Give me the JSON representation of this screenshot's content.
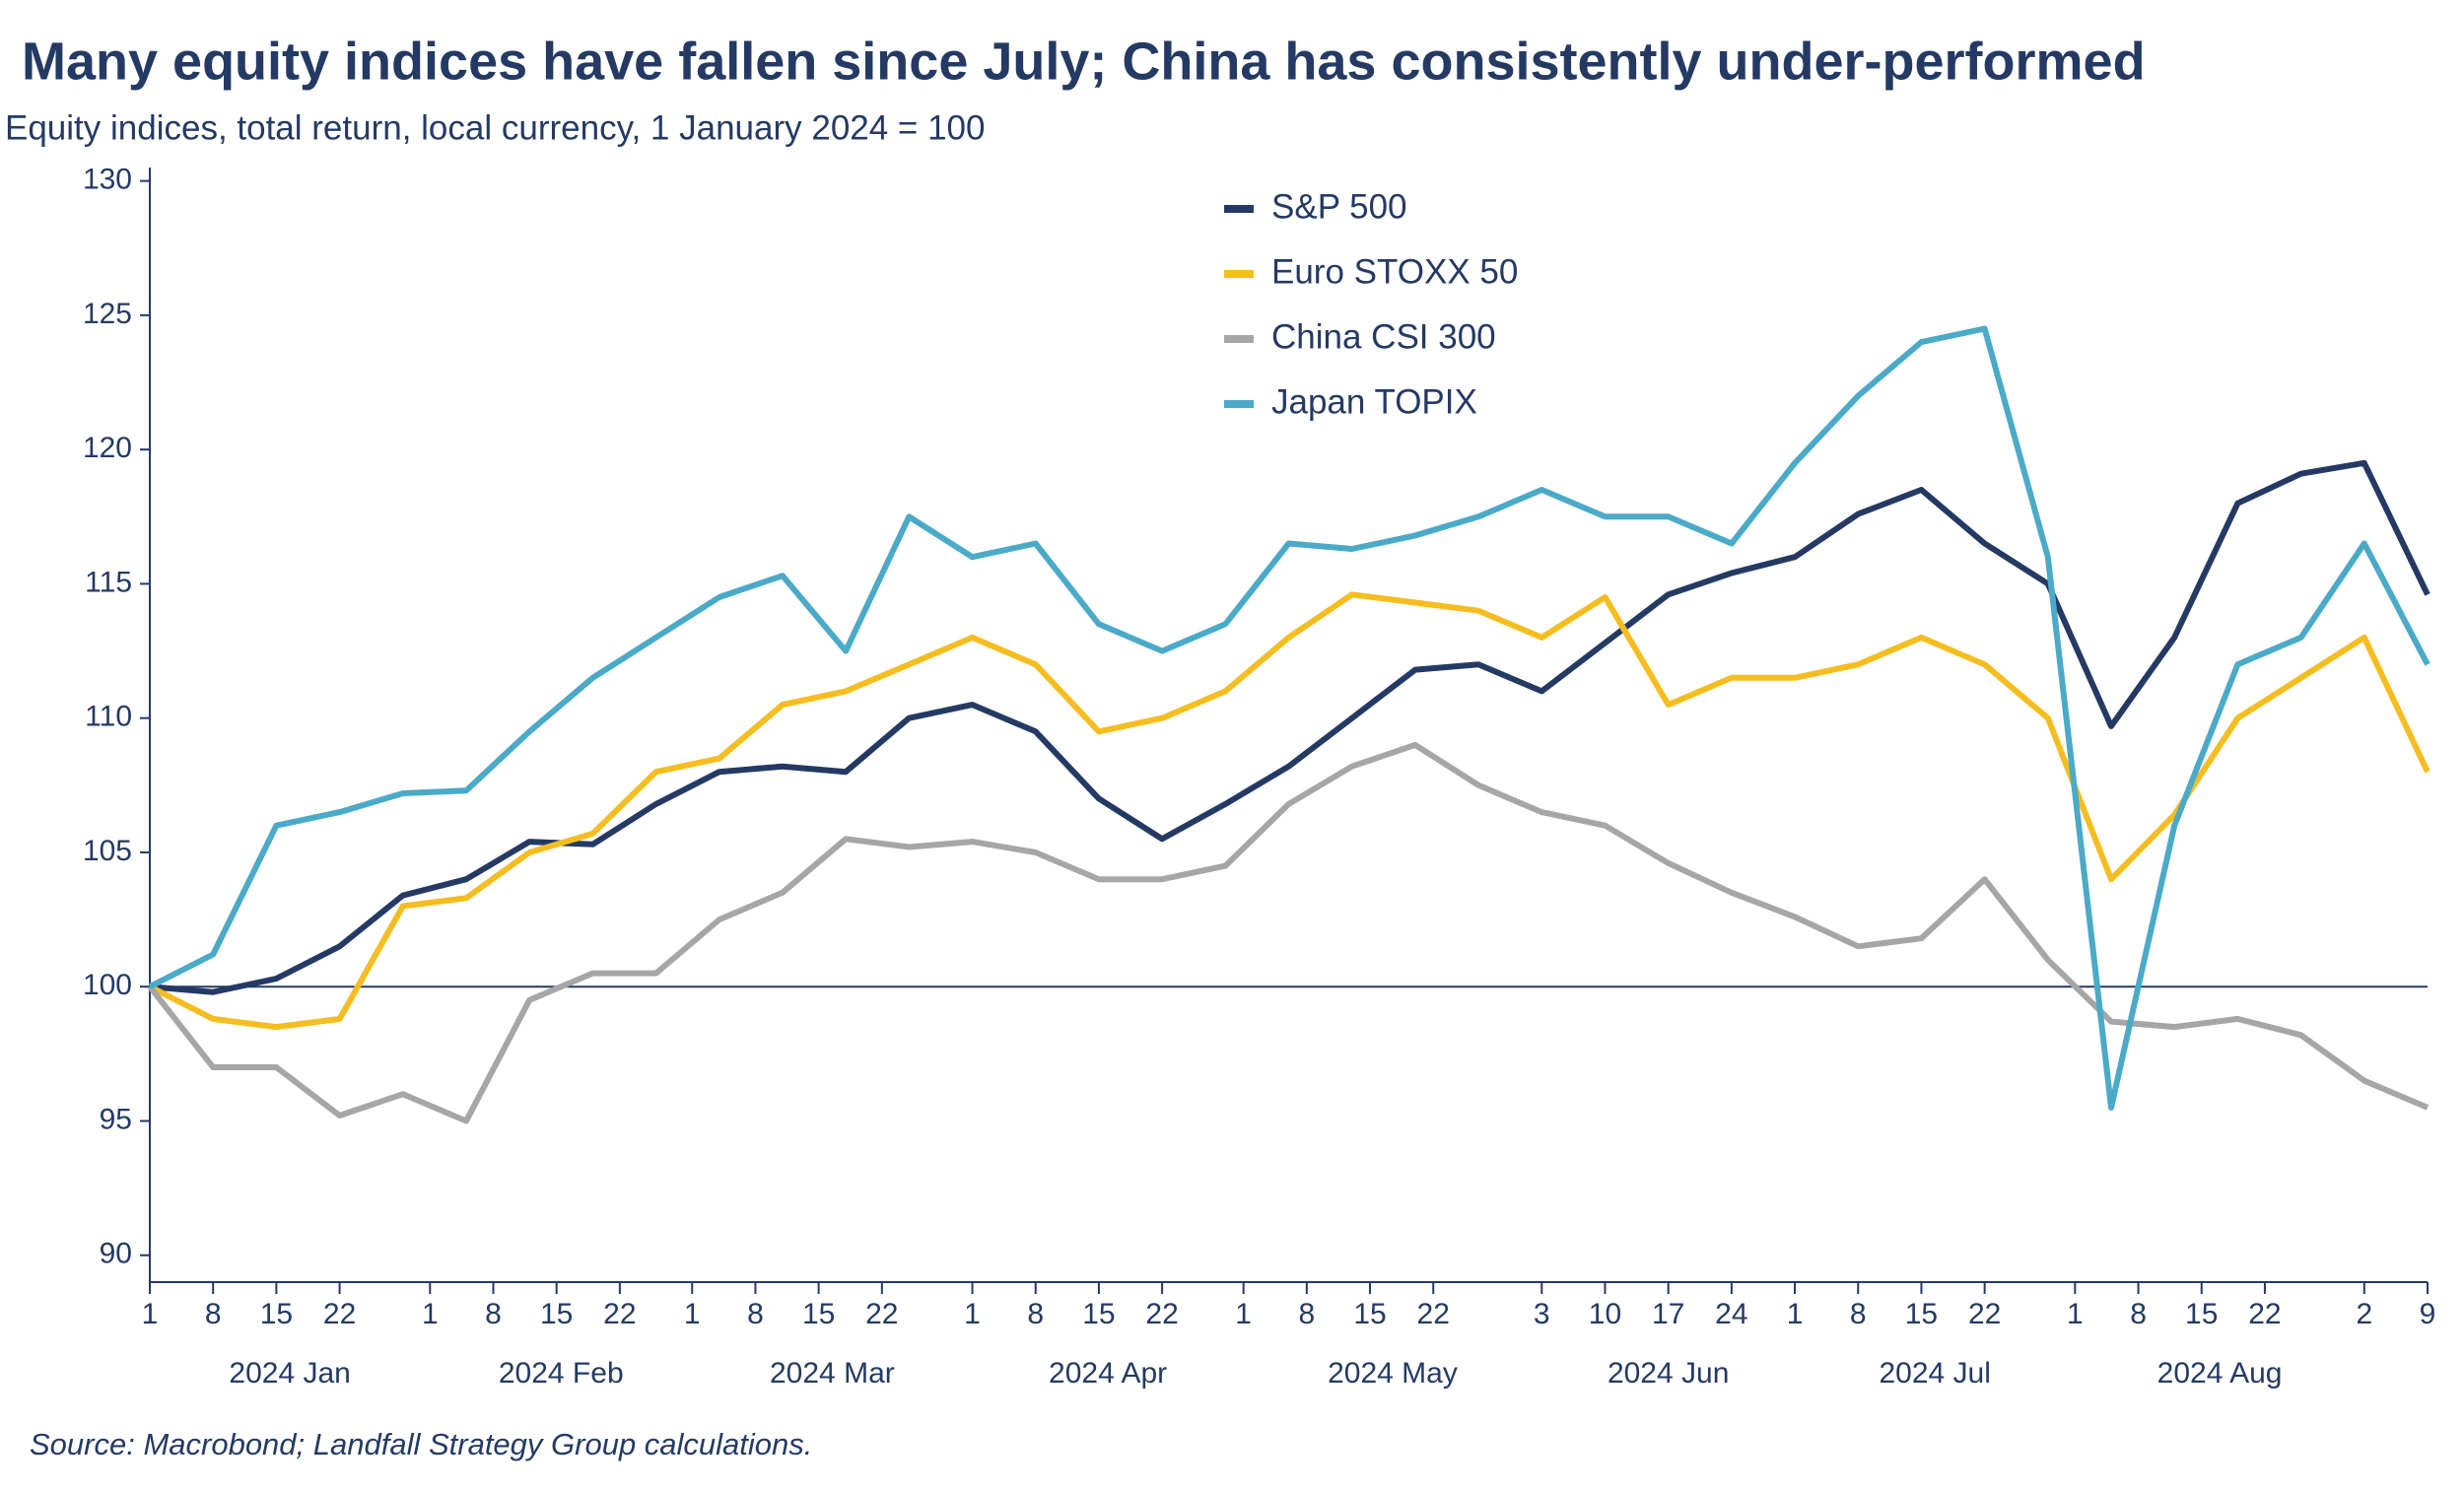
{
  "chart_data": {
    "type": "line",
    "title": "Many equity indices have fallen since July; China has consistently under-performed",
    "subtitle": "Equity indices, total return, local currency, 1 January 2024 = 100",
    "source": "Source: Macrobond; Landfall Strategy Group calculations.",
    "x": [
      "2024-01-01",
      "2024-01-08",
      "2024-01-15",
      "2024-01-22",
      "2024-01-29",
      "2024-02-05",
      "2024-02-12",
      "2024-02-19",
      "2024-02-26",
      "2024-03-04",
      "2024-03-11",
      "2024-03-18",
      "2024-03-25",
      "2024-04-01",
      "2024-04-08",
      "2024-04-15",
      "2024-04-22",
      "2024-04-29",
      "2024-05-06",
      "2024-05-13",
      "2024-05-20",
      "2024-05-27",
      "2024-06-03",
      "2024-06-10",
      "2024-06-17",
      "2024-06-24",
      "2024-07-01",
      "2024-07-08",
      "2024-07-15",
      "2024-07-22",
      "2024-07-29",
      "2024-08-05",
      "2024-08-12",
      "2024-08-19",
      "2024-08-26",
      "2024-09-02",
      "2024-09-09"
    ],
    "series": [
      {
        "name": "S&P 500",
        "color": "#243a64",
        "values": [
          100,
          99.8,
          100.3,
          101.5,
          103.4,
          104,
          105.4,
          105.3,
          106.8,
          108,
          108.2,
          108,
          110,
          110.5,
          109.5,
          107,
          105.5,
          106.8,
          108.2,
          110,
          111.8,
          112,
          111,
          112.8,
          114.6,
          115.4,
          116,
          117.6,
          118.5,
          116.5,
          115,
          109.7,
          113,
          118,
          119.1,
          119.5,
          114.6
        ]
      },
      {
        "name": "Euro STOXX 50",
        "color": "#f5bd1f",
        "values": [
          100,
          98.8,
          98.5,
          98.8,
          103,
          103.3,
          105,
          105.7,
          108,
          108.5,
          110.5,
          111,
          112,
          113,
          112,
          109.5,
          110,
          111,
          113,
          114.6,
          114.3,
          114,
          113,
          114.5,
          110.5,
          111.5,
          111.5,
          112,
          113,
          112,
          110,
          104,
          106.4,
          110,
          111.5,
          113,
          108
        ]
      },
      {
        "name": "China CSI 300",
        "color": "#a6a6a6",
        "values": [
          100,
          97,
          97,
          95.2,
          96,
          95,
          99.5,
          100.5,
          100.5,
          102.5,
          103.5,
          105.5,
          105.2,
          105.4,
          105,
          104,
          104,
          104.5,
          106.8,
          108.2,
          109,
          107.5,
          106.5,
          106,
          104.6,
          103.5,
          102.6,
          101.5,
          101.8,
          104,
          101,
          98.7,
          98.5,
          98.8,
          98.2,
          96.5,
          95.5
        ]
      },
      {
        "name": "Japan TOPIX",
        "color": "#4aaac8",
        "values": [
          100,
          101.2,
          106,
          106.5,
          107.2,
          107.3,
          109.5,
          111.5,
          113,
          114.5,
          115.3,
          112.5,
          117.5,
          116,
          116.5,
          113.5,
          112.5,
          113.5,
          116.5,
          116.3,
          116.8,
          117.5,
          118.5,
          117.5,
          117.5,
          116.5,
          119.5,
          122,
          124,
          124.5,
          116,
          95.5,
          106,
          112,
          113,
          116.5,
          112
        ]
      }
    ],
    "xlim": [
      "2024-01-01",
      "2024-09-09"
    ],
    "xticks": [
      {
        "value": "2024-01-01",
        "label": "1"
      },
      {
        "value": "2024-01-08",
        "label": "8"
      },
      {
        "value": "2024-01-15",
        "label": "15"
      },
      {
        "value": "2024-01-22",
        "label": "22"
      },
      {
        "value": "2024-02-01",
        "label": "1"
      },
      {
        "value": "2024-02-08",
        "label": "8"
      },
      {
        "value": "2024-02-15",
        "label": "15"
      },
      {
        "value": "2024-02-22",
        "label": "22"
      },
      {
        "value": "2024-03-01",
        "label": "1"
      },
      {
        "value": "2024-03-08",
        "label": "8"
      },
      {
        "value": "2024-03-15",
        "label": "15"
      },
      {
        "value": "2024-03-22",
        "label": "22"
      },
      {
        "value": "2024-04-01",
        "label": "1"
      },
      {
        "value": "2024-04-08",
        "label": "8"
      },
      {
        "value": "2024-04-15",
        "label": "15"
      },
      {
        "value": "2024-04-22",
        "label": "22"
      },
      {
        "value": "2024-05-01",
        "label": "1"
      },
      {
        "value": "2024-05-08",
        "label": "8"
      },
      {
        "value": "2024-05-15",
        "label": "15"
      },
      {
        "value": "2024-05-22",
        "label": "22"
      },
      {
        "value": "2024-06-03",
        "label": "3"
      },
      {
        "value": "2024-06-10",
        "label": "10"
      },
      {
        "value": "2024-06-17",
        "label": "17"
      },
      {
        "value": "2024-06-24",
        "label": "24"
      },
      {
        "value": "2024-07-01",
        "label": "1"
      },
      {
        "value": "2024-07-08",
        "label": "8"
      },
      {
        "value": "2024-07-15",
        "label": "15"
      },
      {
        "value": "2024-07-22",
        "label": "22"
      },
      {
        "value": "2024-08-01",
        "label": "1"
      },
      {
        "value": "2024-08-08",
        "label": "8"
      },
      {
        "value": "2024-08-15",
        "label": "15"
      },
      {
        "value": "2024-08-22",
        "label": "22"
      },
      {
        "value": "2024-09-02",
        "label": "2"
      },
      {
        "value": "2024-09-09",
        "label": "9"
      }
    ],
    "x_group_labels": [
      "2024 Jan",
      "2024 Feb",
      "2024 Mar",
      "2024 Apr",
      "2024 May",
      "2024 Jun",
      "2024 Jul",
      "2024 Aug"
    ],
    "ylim": [
      89,
      130.5
    ],
    "yticks": [
      90,
      95,
      100,
      105,
      110,
      115,
      120,
      125,
      130
    ],
    "hline": 100,
    "legend": "top"
  }
}
